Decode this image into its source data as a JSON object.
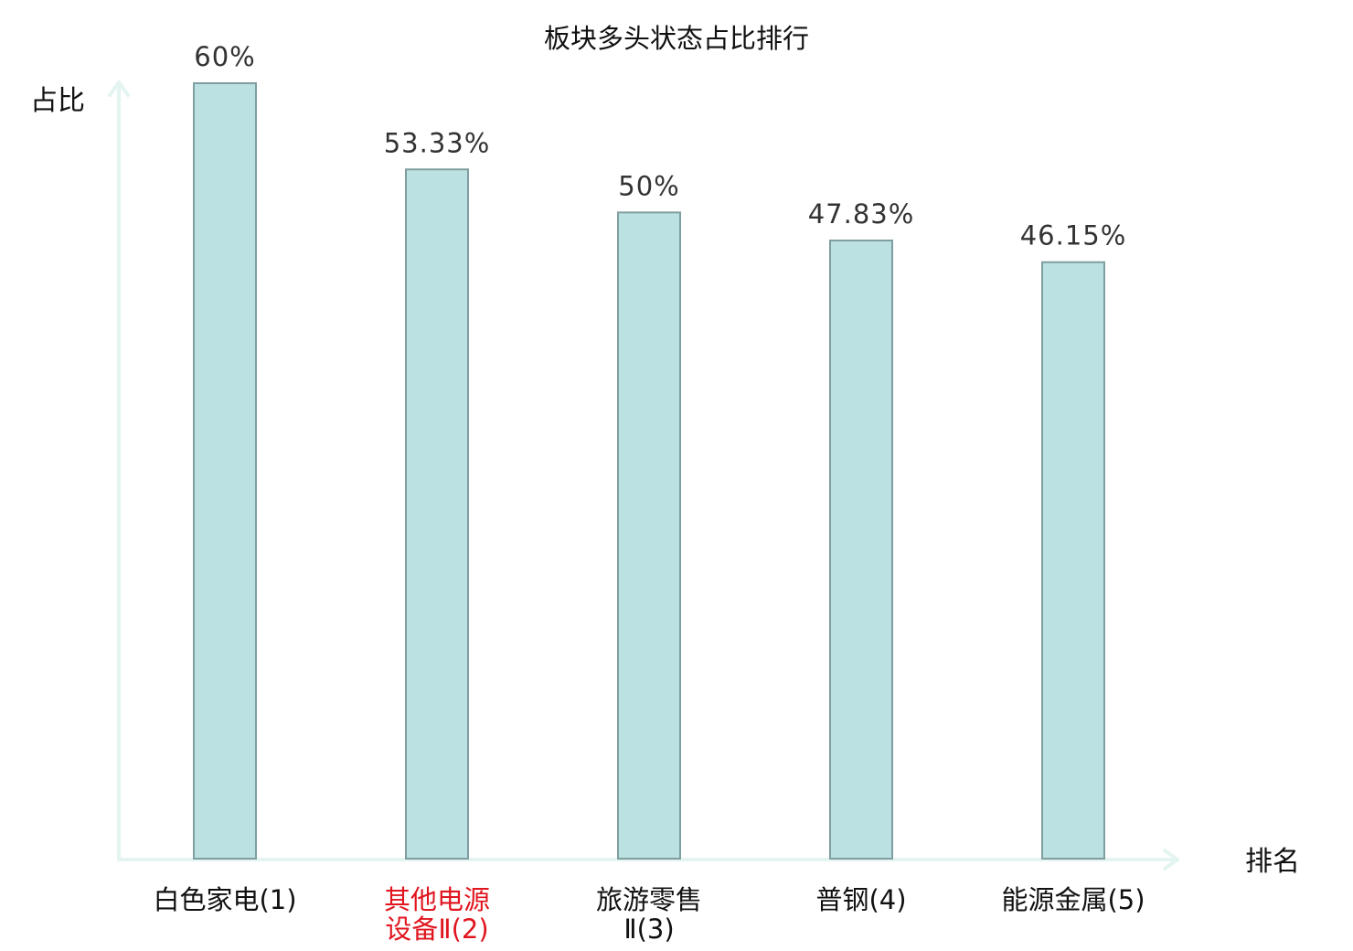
{
  "chart_data": {
    "type": "bar",
    "title": "板块多头状态占比排行",
    "ylabel": "占比",
    "xlabel": "排名",
    "ylim": [
      0,
      60
    ],
    "grid": false,
    "categories": [
      [
        "白色家电(1)"
      ],
      [
        "其他电源",
        "设备Ⅱ(2)"
      ],
      [
        "旅游零售",
        "Ⅱ(3)"
      ],
      [
        "普钢(4)"
      ],
      [
        "能源金属(5)"
      ]
    ],
    "values": [
      60,
      53.33,
      50,
      47.83,
      46.15
    ],
    "value_labels": [
      "60%",
      "53.33%",
      "50%",
      "47.83%",
      "46.15%"
    ],
    "highlight_index": 1,
    "colors": {
      "bar_fill": "#bce1e2",
      "bar_stroke": "#7f9e9f",
      "axis": "#e3f4f1",
      "highlight_text": "#e0161f"
    }
  }
}
